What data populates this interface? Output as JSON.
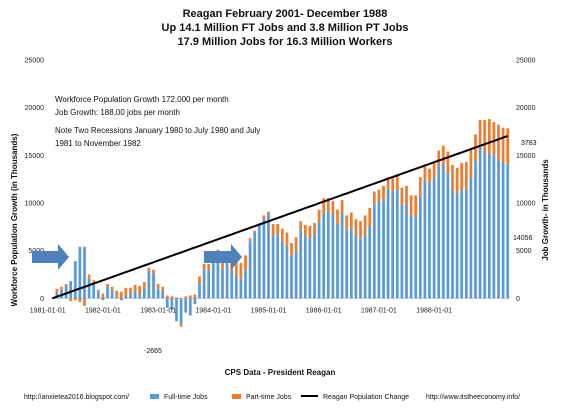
{
  "chart_data": {
    "type": "bar",
    "title_lines": [
      "Reagan February 2001- December 1988",
      "Up 14.1 Million FT Jobs and 3.8 Million PT Jobs",
      "17.9 Million Jobs for 16.3 Million Workers"
    ],
    "notes": [
      "Workforce Population Growth  172,000 per month",
      "Job Growth: 188,00 jobs per month",
      "Note Two Recessions January 1980 to July 1980 and July",
      "1981 to November 1982"
    ],
    "ylabel_left": "Workforce Population Growth (in Thousands)",
    "ylabel_right": "Job Growth- in Thousands",
    "xlabel": "CPS Data - President Reagan",
    "ylim": [
      -5000,
      25000
    ],
    "y_ticks": [
      "0",
      "5000",
      "10000",
      "15000",
      "20000",
      "25000"
    ],
    "x_ticks": [
      "1981-01-01",
      "1982-01-01",
      "1983-01-01",
      "1984-01-01",
      "1985-01-01",
      "1986-01-01",
      "1987-01-01",
      "1988-01-01"
    ],
    "x_start": "1981-02",
    "annotations": {
      "min_label": "-2665",
      "end_population": "3783",
      "end_jobs": "14056"
    },
    "legend": [
      "Full-time Jobs",
      "Part-time Jobs",
      "Reagan Population Change"
    ],
    "series": [
      {
        "name": "Full-time Jobs",
        "color": "#5b9bd5",
        "values": [
          0,
          600,
          900,
          1300,
          1800,
          3900,
          5400,
          5400,
          2100,
          1600,
          700,
          -200,
          1200,
          900,
          200,
          -200,
          300,
          400,
          800,
          500,
          1100,
          2900,
          2600,
          1000,
          800,
          -1000,
          -1200,
          -2400,
          -2665,
          -1500,
          -1800,
          -600,
          1600,
          3000,
          2900,
          3700,
          4000,
          3000,
          3700,
          3000,
          2300,
          2000,
          3000,
          6000,
          6900,
          7800,
          8400,
          8800,
          6600,
          6700,
          6000,
          5500,
          4500,
          5000,
          7200,
          6600,
          6300,
          6700,
          8000,
          9000,
          9200,
          8800,
          7800,
          8900,
          7200,
          7400,
          6500,
          6200,
          6700,
          7600,
          9800,
          10200,
          10300,
          11500,
          11200,
          11400,
          9800,
          9900,
          8700,
          8600,
          10700,
          12400,
          12100,
          12700,
          13800,
          14100,
          13100,
          11400,
          11000,
          11400,
          11500,
          12600,
          14400,
          15800,
          15300,
          15200,
          15000,
          14500,
          14300,
          14056
        ]
      },
      {
        "name": "Part-time Jobs",
        "color": "#ed7d31",
        "values": [
          0,
          400,
          300,
          200,
          -300,
          -200,
          -400,
          -800,
          400,
          300,
          200,
          500,
          300,
          300,
          600,
          700,
          800,
          700,
          600,
          800,
          600,
          300,
          400,
          500,
          400,
          300,
          200,
          100,
          -300,
          200,
          300,
          400,
          700,
          600,
          700,
          800,
          1100,
          1400,
          1100,
          1200,
          1500,
          1700,
          1500,
          300,
          200,
          0,
          300,
          300,
          1200,
          1100,
          1300,
          1400,
          1300,
          1400,
          900,
          1100,
          1300,
          1200,
          1300,
          1500,
          1300,
          1400,
          1500,
          1400,
          1500,
          1600,
          1800,
          1900,
          2000,
          1900,
          1400,
          1200,
          1500,
          1200,
          1400,
          1600,
          1800,
          1900,
          2100,
          2200,
          2000,
          1400,
          1500,
          1600,
          1700,
          1900,
          2300,
          2600,
          2700,
          2800,
          2800,
          3000,
          2800,
          2900,
          3400,
          3600,
          3500,
          3700,
          3600,
          3783
        ]
      },
      {
        "name": "Reagan Population Change",
        "color": "#000000",
        "values": [
          0,
          172,
          344,
          516,
          688,
          860,
          1032,
          1204,
          1376,
          1548,
          1720,
          1892,
          2064,
          2236,
          2408,
          2580,
          2752,
          2924,
          3096,
          3268,
          3440,
          3612,
          3784,
          3956,
          4128,
          4300,
          4472,
          4644,
          4816,
          4988,
          5160,
          5332,
          5504,
          5676,
          5848,
          6020,
          6192,
          6364,
          6536,
          6708,
          6880,
          7052,
          7224,
          7396,
          7568,
          7740,
          7912,
          8084,
          8256,
          8428,
          8600,
          8772,
          8944,
          9116,
          9288,
          9460,
          9632,
          9804,
          9976,
          10148,
          10320,
          10492,
          10664,
          10836,
          11008,
          11180,
          11352,
          11524,
          11696,
          11868,
          12040,
          12212,
          12384,
          12556,
          12728,
          12900,
          13072,
          13244,
          13416,
          13588,
          13760,
          13932,
          14104,
          14276,
          14448,
          14620,
          14792,
          14964,
          15136,
          15308,
          15480,
          15652,
          15824,
          15996,
          16168,
          16340,
          16512,
          16684,
          16856,
          17028
        ]
      }
    ]
  },
  "footer": {
    "left_url": "http://anxietea2016.blogspot.com/",
    "right_url": "http://www.itstheeconomy.info/"
  },
  "colors": {
    "arrow": "#4f81bd"
  }
}
